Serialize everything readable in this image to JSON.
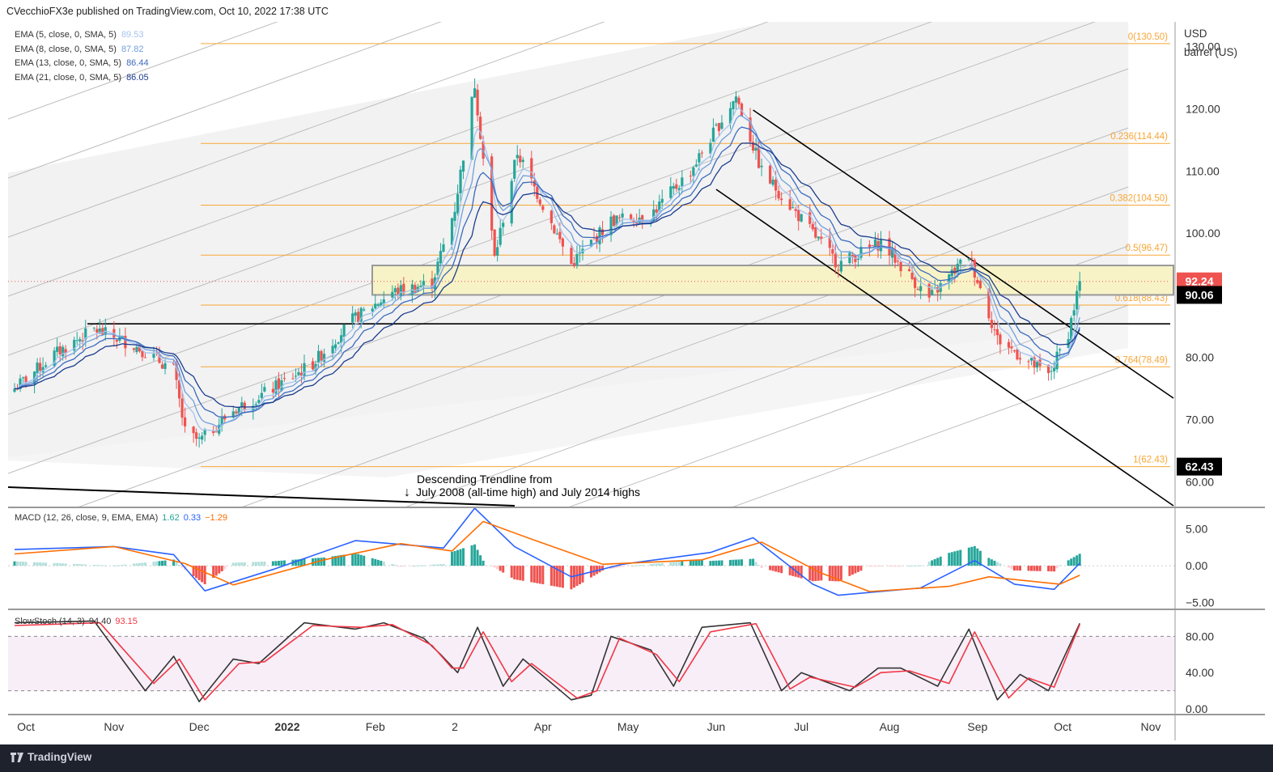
{
  "header": {
    "published": "CVecchioFX3e published on TradingView.com, Oct 10, 2022 17:38 UTC"
  },
  "ema_legend": [
    {
      "label": "EMA (5, close, 0, SMA, 5)",
      "value": "89.53",
      "color": "#a5c3ef"
    },
    {
      "label": "EMA (8, close, 0, SMA, 5)",
      "value": "87.82",
      "color": "#6f9fdd"
    },
    {
      "label": "EMA (13, close, 0, SMA, 5)",
      "value": "86.44",
      "color": "#3b6bbf"
    },
    {
      "label": "EMA (21, close, 0, SMA, 5)",
      "value": "86.05",
      "color": "#1b3d8f"
    }
  ],
  "unit": {
    "line1": "USD",
    "line2": "barrel (US)"
  },
  "macd_legend": {
    "label": "MACD (12, 26, close, 9, EMA, EMA)",
    "v1": "1.62",
    "v2": "0.33",
    "v3": "−1.29"
  },
  "stoch_legend": {
    "label": "SlowStoch (14, 3)",
    "v1": "94.40",
    "v2": "93.15"
  },
  "annotation": {
    "line1": "Descending Trendline from",
    "line2": "July 2008 (all-time high) and July 2014 highs"
  },
  "footer": {
    "brand": "TradingView"
  },
  "colors": {
    "up": "#26a69a",
    "down": "#ef5350",
    "fib": "#f7a637",
    "macd": "#2962ff",
    "signal": "#ff6d00",
    "stoch_k": "#333333",
    "stoch_d": "#f23645",
    "zone": "#f8f3c7"
  },
  "chart_data": [
    {
      "type": "candlestick",
      "title": "",
      "ylim": [
        56,
        134
      ],
      "y_ticks": [
        "130.00",
        "120.00",
        "110.00",
        "100.00",
        "90.00",
        "80.00",
        "70.00",
        "60.00"
      ],
      "x_ticks": [
        "Oct",
        "Nov",
        "Dec",
        "2022",
        "Feb",
        "2",
        "Apr",
        "May",
        "Jun",
        "Jul",
        "Aug",
        "Sep",
        "Oct",
        "Nov"
      ],
      "close_approx": [
        [
          "2021-09-27",
          75.0
        ],
        [
          "2021-10-11",
          80.5
        ],
        [
          "2021-10-25",
          84.5
        ],
        [
          "2021-11-08",
          82.0
        ],
        [
          "2021-11-22",
          78.0
        ],
        [
          "2021-11-26",
          68.0
        ],
        [
          "2021-12-01",
          66.5
        ],
        [
          "2021-12-13",
          71.5
        ],
        [
          "2021-12-27",
          75.0
        ],
        [
          "2022-01-10",
          79.0
        ],
        [
          "2022-01-24",
          86.0
        ],
        [
          "2022-02-07",
          90.5
        ],
        [
          "2022-02-21",
          92.0
        ],
        [
          "2022-03-01",
          104.0
        ],
        [
          "2022-03-08",
          124.0
        ],
        [
          "2022-03-15",
          96.0
        ],
        [
          "2022-03-23",
          113.0
        ],
        [
          "2022-04-11",
          95.0
        ],
        [
          "2022-04-25",
          102.0
        ],
        [
          "2022-05-09",
          103.0
        ],
        [
          "2022-05-23",
          110.0
        ],
        [
          "2022-06-08",
          122.0
        ],
        [
          "2022-06-17",
          110.0
        ],
        [
          "2022-07-05",
          100.0
        ],
        [
          "2022-07-14",
          95.0
        ],
        [
          "2022-07-29",
          98.5
        ],
        [
          "2022-08-15",
          89.5
        ],
        [
          "2022-08-29",
          96.5
        ],
        [
          "2022-09-08",
          83.0
        ],
        [
          "2022-09-26",
          77.0
        ],
        [
          "2022-10-03",
          84.0
        ],
        [
          "2022-10-07",
          92.2
        ]
      ],
      "price_labels": [
        {
          "text": "92.24",
          "value": 92.24,
          "color": "#ef5350"
        },
        {
          "text": "90.06",
          "value": 90.06,
          "color": "#000000"
        },
        {
          "text": "62.43",
          "value": 62.43,
          "color": "#000000"
        }
      ],
      "fibonacci": [
        {
          "label": "0(130.50)",
          "value": 130.5
        },
        {
          "label": "0.236(114.44)",
          "value": 114.44
        },
        {
          "label": "0.382(104.50)",
          "value": 104.5
        },
        {
          "label": "0.5(96.47)",
          "value": 96.47
        },
        {
          "label": "0.618(88.43)",
          "value": 88.43
        },
        {
          "label": "0.764(78.49)",
          "value": 78.49
        },
        {
          "label": "1(62.43)",
          "value": 62.43
        }
      ],
      "zone": [
        90.06,
        94.8
      ],
      "horizontal_support": 85.4
    },
    {
      "type": "line",
      "title": "",
      "ylim": [
        -5.8,
        7.8
      ],
      "y_ticks": [
        "5.00",
        "0.00",
        "−5.00"
      ],
      "series": [
        {
          "name": "",
          "color": "#2962ff",
          "points": [
            [
              "2021-09-27",
              2.2
            ],
            [
              "2021-11-01",
              2.6
            ],
            [
              "2021-11-22",
              1.5
            ],
            [
              "2021-12-03",
              -3.4
            ],
            [
              "2021-12-27",
              -0.5
            ],
            [
              "2022-01-25",
              3.4
            ],
            [
              "2022-02-25",
              2.4
            ],
            [
              "2022-03-08",
              7.8
            ],
            [
              "2022-03-22",
              2.6
            ],
            [
              "2022-04-11",
              -1.5
            ],
            [
              "2022-04-29",
              0.2
            ],
            [
              "2022-05-30",
              1.8
            ],
            [
              "2022-06-14",
              3.8
            ],
            [
              "2022-07-05",
              -2.5
            ],
            [
              "2022-07-14",
              -4.0
            ],
            [
              "2022-08-12",
              -3.0
            ],
            [
              "2022-08-31",
              0.7
            ],
            [
              "2022-09-14",
              -2.5
            ],
            [
              "2022-09-28",
              -3.2
            ],
            [
              "2022-10-07",
              0.33
            ]
          ]
        },
        {
          "name": "",
          "color": "#ff6d00",
          "points": [
            [
              "2021-09-27",
              1.6
            ],
            [
              "2021-11-01",
              2.6
            ],
            [
              "2021-11-26",
              0.3
            ],
            [
              "2021-12-13",
              -2.6
            ],
            [
              "2022-01-14",
              0.8
            ],
            [
              "2022-02-10",
              3.0
            ],
            [
              "2022-02-28",
              2.0
            ],
            [
              "2022-03-11",
              6.0
            ],
            [
              "2022-03-28",
              3.6
            ],
            [
              "2022-04-22",
              0.2
            ],
            [
              "2022-05-27",
              0.8
            ],
            [
              "2022-06-17",
              3.2
            ],
            [
              "2022-07-08",
              -1.0
            ],
            [
              "2022-07-25",
              -3.5
            ],
            [
              "2022-08-22",
              -2.8
            ],
            [
              "2022-09-05",
              -1.5
            ],
            [
              "2022-09-30",
              -2.5
            ],
            [
              "2022-10-07",
              -1.29
            ]
          ]
        }
      ]
    },
    {
      "type": "line",
      "title": "",
      "ylim": [
        0,
        100
      ],
      "y_ticks": [
        "80.00",
        "40.00",
        "0.00"
      ],
      "levels": [
        80,
        20
      ],
      "series": [
        {
          "name": "",
          "color": "#333333",
          "points": [
            [
              "2021-09-27",
              95
            ],
            [
              "2021-10-25",
              97
            ],
            [
              "2021-11-12",
              20
            ],
            [
              "2021-11-22",
              58
            ],
            [
              "2021-12-01",
              8
            ],
            [
              "2021-12-13",
              55
            ],
            [
              "2021-12-22",
              50
            ],
            [
              "2022-01-07",
              95
            ],
            [
              "2022-01-25",
              88
            ],
            [
              "2022-02-04",
              95
            ],
            [
              "2022-02-18",
              78
            ],
            [
              "2022-02-24",
              60
            ],
            [
              "2022-03-02",
              40
            ],
            [
              "2022-03-09",
              90
            ],
            [
              "2022-03-18",
              25
            ],
            [
              "2022-03-25",
              55
            ],
            [
              "2022-04-11",
              10
            ],
            [
              "2022-04-18",
              15
            ],
            [
              "2022-04-25",
              80
            ],
            [
              "2022-05-09",
              65
            ],
            [
              "2022-05-17",
              25
            ],
            [
              "2022-05-27",
              90
            ],
            [
              "2022-06-13",
              95
            ],
            [
              "2022-06-24",
              20
            ],
            [
              "2022-07-01",
              40
            ],
            [
              "2022-07-18",
              20
            ],
            [
              "2022-07-28",
              45
            ],
            [
              "2022-08-05",
              45
            ],
            [
              "2022-08-18",
              25
            ],
            [
              "2022-08-29",
              88
            ],
            [
              "2022-09-08",
              10
            ],
            [
              "2022-09-16",
              38
            ],
            [
              "2022-09-26",
              20
            ],
            [
              "2022-10-07",
              94.4
            ]
          ]
        },
        {
          "name": "",
          "color": "#f23645",
          "points": [
            [
              "2021-09-27",
              92
            ],
            [
              "2021-10-27",
              95
            ],
            [
              "2021-11-15",
              28
            ],
            [
              "2021-11-24",
              55
            ],
            [
              "2021-12-03",
              10
            ],
            [
              "2021-12-15",
              50
            ],
            [
              "2021-12-24",
              52
            ],
            [
              "2022-01-10",
              92
            ],
            [
              "2022-01-27",
              90
            ],
            [
              "2022-02-07",
              93
            ],
            [
              "2022-02-21",
              70
            ],
            [
              "2022-02-28",
              45
            ],
            [
              "2022-03-04",
              45
            ],
            [
              "2022-03-11",
              85
            ],
            [
              "2022-03-21",
              30
            ],
            [
              "2022-03-28",
              50
            ],
            [
              "2022-04-13",
              12
            ],
            [
              "2022-04-20",
              20
            ],
            [
              "2022-04-28",
              78
            ],
            [
              "2022-05-11",
              60
            ],
            [
              "2022-05-19",
              30
            ],
            [
              "2022-05-30",
              85
            ],
            [
              "2022-06-15",
              94
            ],
            [
              "2022-06-27",
              22
            ],
            [
              "2022-07-04",
              35
            ],
            [
              "2022-07-20",
              24
            ],
            [
              "2022-07-29",
              40
            ],
            [
              "2022-08-08",
              42
            ],
            [
              "2022-08-22",
              28
            ],
            [
              "2022-08-31",
              85
            ],
            [
              "2022-09-12",
              12
            ],
            [
              "2022-09-19",
              34
            ],
            [
              "2022-09-28",
              24
            ],
            [
              "2022-10-07",
              93.15
            ]
          ]
        }
      ]
    }
  ]
}
